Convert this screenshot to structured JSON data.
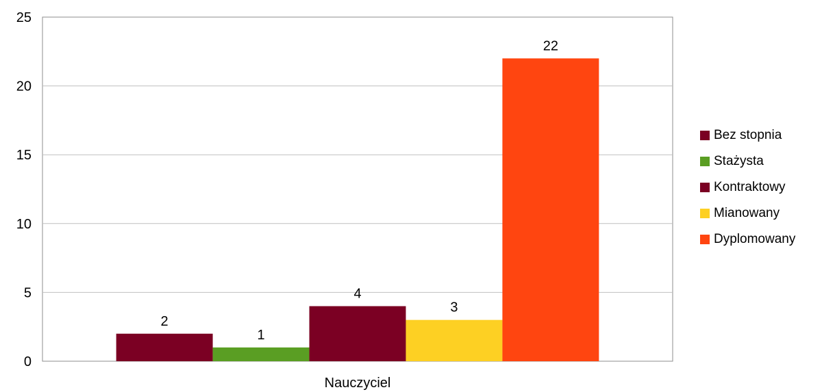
{
  "chart_data": {
    "type": "bar",
    "title": "",
    "xlabel": "",
    "ylabel": "",
    "categories": [
      "Nauczyciel"
    ],
    "series": [
      {
        "name": "Bez stopnia",
        "values": [
          2
        ],
        "color": "#7B0023"
      },
      {
        "name": "Stażysta",
        "values": [
          1
        ],
        "color": "#5A9E23"
      },
      {
        "name": "Kontraktowy",
        "values": [
          4
        ],
        "color": "#7B0023"
      },
      {
        "name": "Mianowany",
        "values": [
          3
        ],
        "color": "#FDD023"
      },
      {
        "name": "Dyplomowany",
        "values": [
          22
        ],
        "color": "#FF4510"
      }
    ],
    "ylim": [
      0,
      25
    ],
    "yticks": [
      "0",
      "5",
      "10",
      "15",
      "20",
      "25"
    ],
    "grid": true,
    "legend_position": "right",
    "data_labels": true
  }
}
